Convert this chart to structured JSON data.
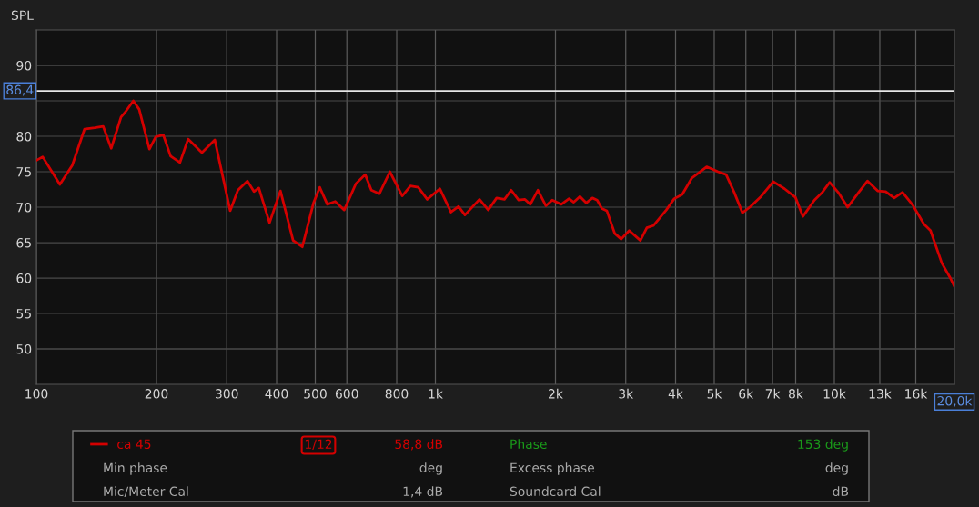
{
  "chart_data": {
    "type": "line",
    "ylabel": "SPL",
    "log": "x",
    "grid": true,
    "legend": "bottom",
    "marker": "none",
    "line_style": "solid",
    "xlim": [
      100,
      20000
    ],
    "ylim": [
      45,
      95
    ],
    "xticks": [
      100,
      200,
      300,
      400,
      500,
      600,
      800,
      {
        "value": 1000,
        "label": "1k"
      },
      {
        "value": 2000,
        "label": "2k"
      },
      {
        "value": 3000,
        "label": "3k"
      },
      {
        "value": 4000,
        "label": "4k"
      },
      {
        "value": 5000,
        "label": "5k"
      },
      {
        "value": 6000,
        "label": "6k"
      },
      {
        "value": 7000,
        "label": "7k"
      },
      {
        "value": 8000,
        "label": "8k"
      },
      {
        "value": 10000,
        "label": "10k"
      },
      {
        "value": 13000,
        "label": "13k"
      },
      {
        "value": 16000,
        "label": "16k"
      }
    ],
    "yticks": [
      50,
      55,
      60,
      65,
      70,
      75,
      80,
      {
        "value": 85,
        "label": null
      },
      90
    ],
    "ref_lines": [
      {
        "axis": "y",
        "value": 86.4,
        "label": "86,4",
        "color": "#e6e6e6"
      },
      {
        "axis": "x",
        "value": 20000,
        "label": "20,0k",
        "color": "#e6e6e6"
      }
    ],
    "series": [
      {
        "name": "ca 45",
        "color": "#d40000",
        "x": [
          100,
          103.7,
          114.5,
          123,
          132,
          140,
          147,
          154,
          163,
          167,
          175,
          181,
          192,
          199,
          208,
          217,
          229,
          240,
          260,
          280,
          306,
          320,
          338,
          351,
          361,
          384,
          409,
          440,
          464,
          495,
          513,
          536,
          561,
          591,
          632,
          667,
          691,
          724,
          769,
          826,
          866,
          906,
          954,
          1026,
          1094,
          1144,
          1186,
          1290,
          1357,
          1424,
          1490,
          1549,
          1617,
          1677,
          1730,
          1807,
          1892,
          1963,
          2068,
          2163,
          2222,
          2303,
          2388,
          2475,
          2544,
          2615,
          2690,
          2815,
          2922,
          3061,
          3265,
          3389,
          3518,
          3791,
          3970,
          4157,
          4393,
          4787,
          5110,
          5355,
          5610,
          5883,
          6167,
          6525,
          7030,
          7503,
          7986,
          8342,
          8915,
          9330,
          9730,
          10220,
          10800,
          11510,
          12110,
          12840,
          13450,
          14130,
          14820,
          15720,
          16780,
          17420,
          18600,
          19530,
          20000
        ],
        "values": [
          76.6,
          77.1,
          73.2,
          75.9,
          81.0,
          81.2,
          81.4,
          78.3,
          82.7,
          83.4,
          85.0,
          83.8,
          78.2,
          79.9,
          80.2,
          77.2,
          76.3,
          79.6,
          77.7,
          79.5,
          69.5,
          72.4,
          73.7,
          72.2,
          72.7,
          67.8,
          72.3,
          65.3,
          64.4,
          70.6,
          72.8,
          70.4,
          70.8,
          69.6,
          73.3,
          74.6,
          72.4,
          71.9,
          75.0,
          71.6,
          73.0,
          72.8,
          71.1,
          72.6,
          69.3,
          70.1,
          68.9,
          71.1,
          69.6,
          71.3,
          71.1,
          72.4,
          71.0,
          71.1,
          70.4,
          72.4,
          70.2,
          71.0,
          70.4,
          71.2,
          70.7,
          71.5,
          70.6,
          71.3,
          71.0,
          69.8,
          69.5,
          66.3,
          65.5,
          66.7,
          65.3,
          67.1,
          67.4,
          69.6,
          71.2,
          71.8,
          74.1,
          75.7,
          75.0,
          74.6,
          72.1,
          69.2,
          70.1,
          71.4,
          73.6,
          72.6,
          71.4,
          68.7,
          71.0,
          72.1,
          73.5,
          72.1,
          70.0,
          72.1,
          73.7,
          72.3,
          72.2,
          71.3,
          72.1,
          70.3,
          67.6,
          66.7,
          62.1,
          60.0,
          58.8
        ]
      }
    ],
    "annotations": [
      "1/12",
      "58,8 dB",
      "Phase",
      "153 deg",
      "Min phase",
      "deg",
      "Excess phase",
      "deg",
      "Mic/Meter Cal",
      "1,4 dB",
      "Soundcard Cal",
      "dB"
    ]
  }
}
